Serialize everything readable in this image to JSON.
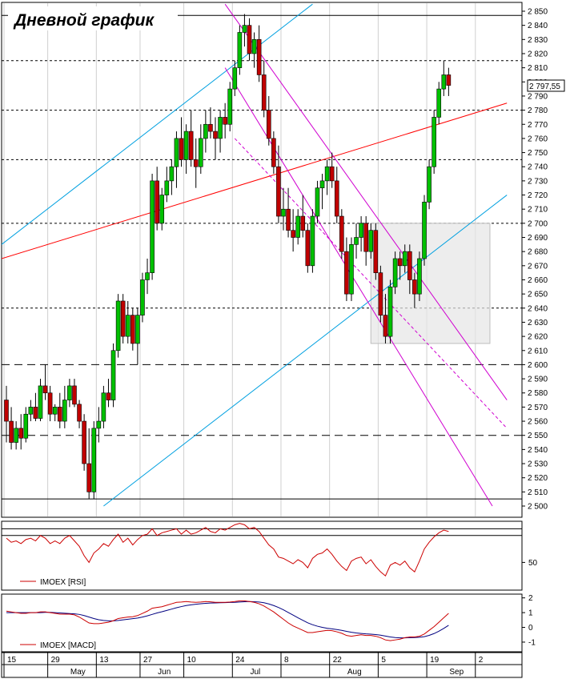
{
  "chart_data": {
    "type": "candlestick",
    "title": "Дневной график",
    "instrument": "IMOEX",
    "price_axis": {
      "ylim": [
        2500,
        2850
      ],
      "ticks": [
        2500,
        2510,
        2520,
        2530,
        2540,
        2550,
        2560,
        2570,
        2580,
        2590,
        2600,
        2610,
        2620,
        2630,
        2640,
        2650,
        2660,
        2670,
        2680,
        2690,
        2700,
        2710,
        2720,
        2730,
        2740,
        2750,
        2760,
        2770,
        2780,
        2790,
        2800,
        2810,
        2820,
        2830,
        2840,
        2850
      ],
      "tick_labels": [
        "2 500",
        "2 510",
        "2 520",
        "2 530",
        "2 540",
        "2 550",
        "2 560",
        "2 570",
        "2 580",
        "2 590",
        "2 600",
        "2 610",
        "2 620",
        "2 630",
        "2 640",
        "2 650",
        "2 660",
        "2 670",
        "2 680",
        "2 690",
        "2 700",
        "2 710",
        "2 720",
        "2 730",
        "2 740",
        "2 750",
        "2 760",
        "2 770",
        "2 780",
        "2 790",
        "2 800",
        "2 810",
        "2 820",
        "2 830",
        "2 840",
        "2 850"
      ],
      "last_price_label": "2 797,55",
      "last_price": 2797.55
    },
    "x_axis": {
      "day_labels": [
        {
          "label": "15",
          "bar": 0
        },
        {
          "label": "29",
          "bar": 9
        },
        {
          "label": "13",
          "bar": 19
        },
        {
          "label": "27",
          "bar": 28
        },
        {
          "label": "10",
          "bar": 37
        },
        {
          "label": "24",
          "bar": 47
        },
        {
          "label": "8",
          "bar": 57
        },
        {
          "label": "22",
          "bar": 67
        },
        {
          "label": "5",
          "bar": 77
        },
        {
          "label": "19",
          "bar": 87
        },
        {
          "label": "2",
          "bar": 97
        }
      ],
      "month_labels": [
        {
          "label": "May",
          "bar": 13
        },
        {
          "label": "Jun",
          "bar": 31
        },
        {
          "label": "Jul",
          "bar": 50
        },
        {
          "label": "Aug",
          "bar": 70
        },
        {
          "label": "Sep",
          "bar": 91
        }
      ]
    },
    "candles": [
      [
        2575,
        2585,
        2545,
        2560
      ],
      [
        2560,
        2570,
        2540,
        2545
      ],
      [
        2545,
        2560,
        2540,
        2555
      ],
      [
        2555,
        2565,
        2540,
        2548
      ],
      [
        2548,
        2570,
        2545,
        2565
      ],
      [
        2565,
        2575,
        2560,
        2570
      ],
      [
        2570,
        2580,
        2560,
        2562
      ],
      [
        2562,
        2590,
        2560,
        2585
      ],
      [
        2585,
        2600,
        2575,
        2580
      ],
      [
        2580,
        2585,
        2560,
        2565
      ],
      [
        2565,
        2572,
        2560,
        2570
      ],
      [
        2570,
        2580,
        2555,
        2560
      ],
      [
        2560,
        2585,
        2555,
        2575
      ],
      [
        2575,
        2590,
        2570,
        2585
      ],
      [
        2585,
        2590,
        2570,
        2572
      ],
      [
        2572,
        2575,
        2555,
        2560
      ],
      [
        2560,
        2565,
        2525,
        2530
      ],
      [
        2530,
        2555,
        2505,
        2510
      ],
      [
        2510,
        2560,
        2505,
        2555
      ],
      [
        2555,
        2570,
        2545,
        2560
      ],
      [
        2560,
        2585,
        2555,
        2580
      ],
      [
        2580,
        2590,
        2570,
        2575
      ],
      [
        2575,
        2615,
        2570,
        2610
      ],
      [
        2610,
        2650,
        2605,
        2645
      ],
      [
        2645,
        2650,
        2615,
        2620
      ],
      [
        2620,
        2645,
        2615,
        2635
      ],
      [
        2635,
        2640,
        2610,
        2615
      ],
      [
        2615,
        2640,
        2600,
        2635
      ],
      [
        2635,
        2665,
        2630,
        2660
      ],
      [
        2660,
        2675,
        2650,
        2665
      ],
      [
        2665,
        2735,
        2660,
        2730
      ],
      [
        2730,
        2740,
        2695,
        2700
      ],
      [
        2700,
        2725,
        2695,
        2720
      ],
      [
        2720,
        2740,
        2715,
        2730
      ],
      [
        2730,
        2745,
        2720,
        2740
      ],
      [
        2740,
        2765,
        2725,
        2760
      ],
      [
        2760,
        2775,
        2740,
        2745
      ],
      [
        2745,
        2770,
        2735,
        2765
      ],
      [
        2765,
        2780,
        2740,
        2745
      ],
      [
        2745,
        2760,
        2725,
        2740
      ],
      [
        2740,
        2770,
        2735,
        2760
      ],
      [
        2760,
        2780,
        2750,
        2770
      ],
      [
        2770,
        2782,
        2760,
        2765
      ],
      [
        2765,
        2775,
        2745,
        2760
      ],
      [
        2760,
        2780,
        2750,
        2775
      ],
      [
        2775,
        2785,
        2760,
        2770
      ],
      [
        2770,
        2800,
        2765,
        2795
      ],
      [
        2795,
        2815,
        2790,
        2810
      ],
      [
        2810,
        2840,
        2805,
        2835
      ],
      [
        2835,
        2848,
        2825,
        2840
      ],
      [
        2840,
        2845,
        2815,
        2820
      ],
      [
        2820,
        2835,
        2810,
        2830
      ],
      [
        2830,
        2840,
        2800,
        2805
      ],
      [
        2805,
        2815,
        2775,
        2780
      ],
      [
        2780,
        2790,
        2755,
        2760
      ],
      [
        2760,
        2765,
        2735,
        2740
      ],
      [
        2740,
        2755,
        2700,
        2705
      ],
      [
        2705,
        2725,
        2695,
        2710
      ],
      [
        2710,
        2725,
        2690,
        2695
      ],
      [
        2695,
        2710,
        2680,
        2690
      ],
      [
        2690,
        2710,
        2685,
        2705
      ],
      [
        2705,
        2720,
        2690,
        2695
      ],
      [
        2695,
        2700,
        2665,
        2670
      ],
      [
        2670,
        2710,
        2665,
        2705
      ],
      [
        2705,
        2730,
        2700,
        2725
      ],
      [
        2725,
        2735,
        2710,
        2730
      ],
      [
        2730,
        2745,
        2720,
        2740
      ],
      [
        2740,
        2750,
        2725,
        2730
      ],
      [
        2730,
        2740,
        2700,
        2705
      ],
      [
        2705,
        2710,
        2675,
        2680
      ],
      [
        2680,
        2690,
        2645,
        2650
      ],
      [
        2650,
        2690,
        2645,
        2685
      ],
      [
        2685,
        2700,
        2675,
        2690
      ],
      [
        2690,
        2705,
        2680,
        2700
      ],
      [
        2700,
        2705,
        2670,
        2680
      ],
      [
        2680,
        2700,
        2675,
        2695
      ],
      [
        2695,
        2700,
        2660,
        2665
      ],
      [
        2665,
        2670,
        2630,
        2635
      ],
      [
        2635,
        2650,
        2615,
        2620
      ],
      [
        2620,
        2660,
        2615,
        2655
      ],
      [
        2655,
        2680,
        2650,
        2675
      ],
      [
        2675,
        2680,
        2660,
        2670
      ],
      [
        2670,
        2685,
        2665,
        2680
      ],
      [
        2680,
        2685,
        2650,
        2660
      ],
      [
        2660,
        2665,
        2640,
        2650
      ],
      [
        2650,
        2680,
        2645,
        2675
      ],
      [
        2675,
        2720,
        2670,
        2715
      ],
      [
        2715,
        2745,
        2710,
        2740
      ],
      [
        2740,
        2780,
        2735,
        2775
      ],
      [
        2775,
        2800,
        2770,
        2795
      ],
      [
        2795,
        2815,
        2790,
        2805
      ],
      [
        2805,
        2810,
        2790,
        2797.55
      ]
    ],
    "horizontal_levels": [
      {
        "value": 2847,
        "style": "solid"
      },
      {
        "value": 2815,
        "style": "dotted"
      },
      {
        "value": 2780,
        "style": "dotted"
      },
      {
        "value": 2745,
        "style": "dotted"
      },
      {
        "value": 2700,
        "style": "dotted"
      },
      {
        "value": 2640,
        "style": "dotted"
      },
      {
        "value": 2600,
        "style": "dashed"
      },
      {
        "value": 2550,
        "style": "dashed"
      },
      {
        "value": 2505,
        "style": "solid"
      }
    ],
    "trend_lines": [
      {
        "color": "#ff0000",
        "style": "solid",
        "from": [
          -1,
          2675
        ],
        "to": [
          103,
          2785
        ]
      },
      {
        "color": "#00a0e0",
        "style": "solid",
        "from": [
          -1,
          2685
        ],
        "to": [
          63,
          2855
        ]
      },
      {
        "color": "#00a0e0",
        "style": "solid",
        "from": [
          20,
          2500
        ],
        "to": [
          103,
          2720
        ]
      },
      {
        "color": "#d000d0",
        "style": "solid",
        "from": [
          45,
          2855
        ],
        "to": [
          103,
          2575
        ]
      },
      {
        "color": "#d000d0",
        "style": "solid",
        "from": [
          45,
          2810
        ],
        "to": [
          100,
          2500
        ]
      },
      {
        "color": "#d000d0",
        "style": "dashed",
        "from": [
          47,
          2760
        ],
        "to": [
          103,
          2555
        ]
      }
    ],
    "highlight_box": {
      "x_from_bar": 75,
      "x_to_bar": 99.5,
      "y_from": 2615,
      "y_to": 2700
    },
    "rsi": {
      "name": "IMOEX [RSI]",
      "ylim": [
        30,
        80
      ],
      "tick_labels": [
        "50"
      ],
      "ticks": [
        50
      ],
      "levels": [
        70,
        75
      ],
      "values": [
        68,
        65,
        66,
        64,
        67,
        68,
        66,
        70,
        68,
        64,
        66,
        64,
        68,
        70,
        66,
        62,
        55,
        50,
        57,
        60,
        64,
        62,
        67,
        71,
        65,
        68,
        63,
        67,
        70,
        71,
        75,
        70,
        72,
        73,
        74,
        75,
        71,
        74,
        71,
        72,
        74,
        76,
        73,
        72,
        75,
        74,
        76,
        78,
        79,
        78,
        75,
        76,
        73,
        68,
        63,
        60,
        54,
        53,
        51,
        49,
        52,
        50,
        46,
        53,
        56,
        57,
        60,
        56,
        51,
        47,
        44,
        51,
        53,
        54,
        49,
        52,
        47,
        43,
        40,
        48,
        50,
        48,
        51,
        46,
        43,
        51,
        60,
        65,
        69,
        72,
        74,
        73
      ]
    },
    "macd": {
      "name": "IMOEX [MACD]",
      "ylim": [
        -1.6,
        2.2
      ],
      "ticks": [
        -1,
        0,
        1,
        2
      ],
      "tick_labels": [
        "-1",
        "0",
        "1",
        "2"
      ],
      "macd": [
        1.1,
        1.05,
        1.0,
        0.95,
        0.95,
        1.0,
        1.0,
        1.05,
        1.05,
        1.0,
        0.95,
        0.9,
        0.9,
        0.9,
        0.85,
        0.7,
        0.5,
        0.3,
        0.25,
        0.25,
        0.3,
        0.35,
        0.45,
        0.6,
        0.65,
        0.7,
        0.72,
        0.8,
        0.95,
        1.1,
        1.3,
        1.35,
        1.4,
        1.5,
        1.6,
        1.7,
        1.72,
        1.75,
        1.72,
        1.7,
        1.72,
        1.75,
        1.73,
        1.7,
        1.7,
        1.7,
        1.72,
        1.75,
        1.8,
        1.8,
        1.75,
        1.7,
        1.6,
        1.45,
        1.25,
        1.05,
        0.8,
        0.55,
        0.3,
        0.1,
        -0.05,
        -0.2,
        -0.35,
        -0.35,
        -0.3,
        -0.25,
        -0.2,
        -0.22,
        -0.3,
        -0.4,
        -0.55,
        -0.6,
        -0.55,
        -0.5,
        -0.55,
        -0.55,
        -0.6,
        -0.7,
        -0.85,
        -0.9,
        -0.85,
        -0.8,
        -0.7,
        -0.65,
        -0.65,
        -0.6,
        -0.45,
        -0.2,
        0.05,
        0.35,
        0.65,
        0.95
      ],
      "signal": [
        1.0,
        1.0,
        1.0,
        1.0,
        1.0,
        1.0,
        1.0,
        1.0,
        1.02,
        1.02,
        1.0,
        0.98,
        0.96,
        0.94,
        0.92,
        0.88,
        0.8,
        0.7,
        0.6,
        0.52,
        0.47,
        0.44,
        0.44,
        0.47,
        0.51,
        0.55,
        0.59,
        0.63,
        0.7,
        0.78,
        0.88,
        0.98,
        1.06,
        1.15,
        1.24,
        1.33,
        1.41,
        1.48,
        1.53,
        1.57,
        1.6,
        1.63,
        1.65,
        1.66,
        1.67,
        1.68,
        1.69,
        1.7,
        1.72,
        1.74,
        1.75,
        1.74,
        1.72,
        1.67,
        1.59,
        1.48,
        1.35,
        1.19,
        1.01,
        0.83,
        0.65,
        0.48,
        0.31,
        0.18,
        0.08,
        0.0,
        -0.06,
        -0.1,
        -0.15,
        -0.2,
        -0.27,
        -0.33,
        -0.38,
        -0.41,
        -0.44,
        -0.46,
        -0.49,
        -0.53,
        -0.59,
        -0.65,
        -0.69,
        -0.71,
        -0.71,
        -0.7,
        -0.69,
        -0.67,
        -0.63,
        -0.54,
        -0.42,
        -0.26,
        -0.07,
        0.14
      ]
    }
  },
  "colors": {
    "bull": "#00c000",
    "bear": "#c00000",
    "rsi_line": "#cc0000",
    "macd_line": "#cc0000",
    "signal_line": "#000080"
  }
}
